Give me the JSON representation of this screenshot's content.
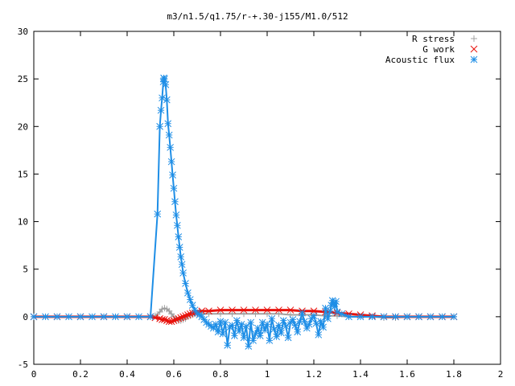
{
  "chart_data": {
    "type": "scatter",
    "title": "m3/n1.5/q1.75/r-+.30-j155/M1.0/512",
    "xlabel": "",
    "ylabel": "",
    "xlim": [
      0,
      2
    ],
    "ylim": [
      -5,
      30
    ],
    "x_ticks": [
      "0",
      "0.2",
      "0.4",
      "0.6",
      "0.8",
      "1",
      "1.2",
      "1.4",
      "1.6",
      "1.8",
      "2"
    ],
    "y_ticks": [
      "-5",
      "0",
      "5",
      "10",
      "15",
      "20",
      "25",
      "30"
    ],
    "grid": false,
    "legend_position": "top-right",
    "series": [
      {
        "name": "R stress",
        "marker": "+",
        "color": "#a0a0a0",
        "x": [
          0.0,
          0.1,
          0.2,
          0.3,
          0.4,
          0.5,
          0.52,
          0.54,
          0.55,
          0.56,
          0.57,
          0.58,
          0.59,
          0.6,
          0.61,
          0.62,
          0.63,
          0.64,
          0.65,
          0.66,
          0.67,
          0.68,
          0.69,
          0.7,
          0.72,
          0.75,
          0.8,
          0.85,
          0.9,
          0.95,
          1.0,
          1.05,
          1.1,
          1.15,
          1.2,
          1.25,
          1.3,
          1.35,
          1.4,
          1.45,
          1.5,
          1.55,
          1.6,
          1.65,
          1.7,
          1.75,
          1.8
        ],
        "y": [
          0.0,
          0.0,
          0.0,
          0.0,
          0.0,
          0.0,
          0.1,
          0.5,
          0.8,
          0.9,
          0.8,
          0.6,
          0.3,
          0.0,
          -0.3,
          -0.4,
          -0.4,
          -0.3,
          -0.2,
          0.0,
          0.1,
          0.2,
          0.3,
          0.3,
          0.3,
          0.3,
          0.3,
          0.3,
          0.3,
          0.3,
          0.3,
          0.3,
          0.2,
          0.2,
          0.2,
          0.1,
          0.1,
          0.0,
          0.0,
          0.0,
          -0.1,
          -0.1,
          0.0,
          0.0,
          0.0,
          0.0,
          0.0
        ]
      },
      {
        "name": "G work",
        "marker": "x",
        "color": "#e8120c",
        "x": [
          0.0,
          0.1,
          0.2,
          0.3,
          0.4,
          0.5,
          0.52,
          0.54,
          0.55,
          0.56,
          0.57,
          0.58,
          0.59,
          0.6,
          0.61,
          0.62,
          0.63,
          0.64,
          0.65,
          0.66,
          0.67,
          0.68,
          0.69,
          0.7,
          0.72,
          0.75,
          0.8,
          0.85,
          0.9,
          0.95,
          1.0,
          1.05,
          1.1,
          1.15,
          1.2,
          1.25,
          1.3,
          1.35,
          1.4,
          1.45,
          1.5,
          1.55,
          1.6,
          1.65,
          1.7,
          1.75,
          1.8
        ],
        "y": [
          0.0,
          0.0,
          0.0,
          0.0,
          0.0,
          0.0,
          -0.1,
          -0.2,
          -0.3,
          -0.3,
          -0.4,
          -0.5,
          -0.5,
          -0.4,
          -0.3,
          -0.2,
          -0.1,
          0.0,
          0.1,
          0.2,
          0.3,
          0.4,
          0.4,
          0.5,
          0.6,
          0.6,
          0.7,
          0.7,
          0.7,
          0.7,
          0.7,
          0.7,
          0.7,
          0.6,
          0.6,
          0.5,
          0.4,
          0.3,
          0.2,
          0.1,
          0.0,
          0.0,
          0.0,
          0.0,
          0.0,
          0.0,
          0.0
        ]
      },
      {
        "name": "Acoustic flux",
        "marker": "*",
        "color": "#1e8ee6",
        "x": [
          0.0,
          0.05,
          0.1,
          0.15,
          0.2,
          0.25,
          0.3,
          0.35,
          0.4,
          0.45,
          0.5,
          0.53,
          0.54,
          0.545,
          0.55,
          0.555,
          0.557,
          0.56,
          0.565,
          0.57,
          0.575,
          0.58,
          0.585,
          0.59,
          0.595,
          0.6,
          0.605,
          0.61,
          0.615,
          0.62,
          0.625,
          0.63,
          0.635,
          0.64,
          0.65,
          0.66,
          0.67,
          0.68,
          0.69,
          0.7,
          0.71,
          0.72,
          0.73,
          0.74,
          0.75,
          0.76,
          0.77,
          0.78,
          0.79,
          0.8,
          0.81,
          0.82,
          0.83,
          0.84,
          0.85,
          0.86,
          0.87,
          0.88,
          0.89,
          0.9,
          0.91,
          0.92,
          0.93,
          0.94,
          0.95,
          0.96,
          0.97,
          0.98,
          0.99,
          1.0,
          1.01,
          1.02,
          1.03,
          1.04,
          1.05,
          1.06,
          1.07,
          1.08,
          1.09,
          1.1,
          1.11,
          1.12,
          1.13,
          1.14,
          1.15,
          1.16,
          1.17,
          1.18,
          1.19,
          1.2,
          1.21,
          1.22,
          1.23,
          1.24,
          1.25,
          1.26,
          1.27,
          1.275,
          1.28,
          1.285,
          1.29,
          1.295,
          1.3,
          1.32,
          1.35,
          1.4,
          1.45,
          1.5,
          1.55,
          1.6,
          1.65,
          1.7,
          1.75,
          1.8
        ],
        "y": [
          0.0,
          0.0,
          0.0,
          0.0,
          0.0,
          0.0,
          0.0,
          0.0,
          0.0,
          0.0,
          0.0,
          10.8,
          20.0,
          21.7,
          23.0,
          24.7,
          25.1,
          25.0,
          24.4,
          22.8,
          20.3,
          19.1,
          17.8,
          16.3,
          14.9,
          13.5,
          12.1,
          10.7,
          9.6,
          8.4,
          7.3,
          6.3,
          5.5,
          4.6,
          3.5,
          2.5,
          1.8,
          1.2,
          0.7,
          0.4,
          0.2,
          0.0,
          -0.3,
          -0.6,
          -0.8,
          -1.0,
          -1.2,
          -0.8,
          -1.6,
          -0.5,
          -1.8,
          -0.6,
          -3.0,
          -1.1,
          -0.9,
          -2.0,
          -0.4,
          -1.5,
          -0.8,
          -2.2,
          -1.0,
          -3.1,
          -0.6,
          -2.5,
          -1.8,
          -1.2,
          -2.0,
          -0.6,
          -1.4,
          -0.8,
          -2.5,
          -0.2,
          -1.3,
          -2.1,
          -0.9,
          -1.7,
          -0.4,
          -1.0,
          -2.2,
          -0.6,
          -0.3,
          -0.9,
          -1.6,
          -0.5,
          0.4,
          -0.5,
          -1.2,
          -0.8,
          -0.2,
          0.1,
          -0.7,
          -1.9,
          -0.5,
          -1.1,
          0.9,
          -0.2,
          0.6,
          1.2,
          1.7,
          1.4,
          1.1,
          1.6,
          0.5,
          0.3,
          0.0,
          0.0,
          0.0,
          0.0,
          0.0,
          0.0,
          0.0,
          0.0,
          0.0,
          0.0
        ]
      }
    ]
  }
}
